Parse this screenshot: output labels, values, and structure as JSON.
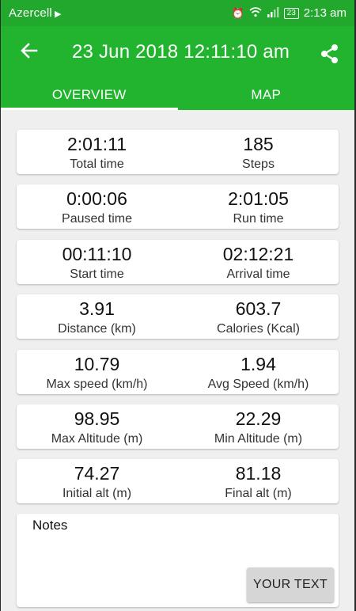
{
  "status_bar": {
    "carrier": "Azercell",
    "battery": "23",
    "time": "2:13 am"
  },
  "toolbar": {
    "title": "23 Jun 2018 12:11:10 am",
    "back_icon": "arrow-left-icon",
    "share_icon": "share-icon"
  },
  "tabs": [
    {
      "label": "OVERVIEW",
      "active": true
    },
    {
      "label": "MAP",
      "active": false
    }
  ],
  "stats": [
    {
      "left": {
        "value": "2:01:11",
        "label": "Total time"
      },
      "right": {
        "value": "185",
        "label": "Steps"
      }
    },
    {
      "left": {
        "value": "0:00:06",
        "label": "Paused time"
      },
      "right": {
        "value": "2:01:05",
        "label": "Run time"
      }
    },
    {
      "left": {
        "value": "00:11:10",
        "label": "Start time"
      },
      "right": {
        "value": "02:12:21",
        "label": "Arrival time"
      }
    },
    {
      "left": {
        "value": "3.91",
        "label": "Distance (km)"
      },
      "right": {
        "value": "603.7",
        "label": "Calories (Kcal)"
      }
    },
    {
      "left": {
        "value": "10.79",
        "label": "Max speed (km/h)"
      },
      "right": {
        "value": "1.94",
        "label": "Avg Speed (km/h)"
      }
    },
    {
      "left": {
        "value": "98.95",
        "label": "Max Altitude (m)"
      },
      "right": {
        "value": "22.29",
        "label": "Min Altitude (m)"
      }
    },
    {
      "left": {
        "value": "74.27",
        "label": "Initial alt (m)"
      },
      "right": {
        "value": "81.18",
        "label": "Final alt (m)"
      }
    }
  ],
  "notes": {
    "label": "Notes",
    "button": "YOUR TEXT"
  },
  "colors": {
    "primary": "#22b42f",
    "status_bar": "#22a82c",
    "background": "#efefef"
  }
}
